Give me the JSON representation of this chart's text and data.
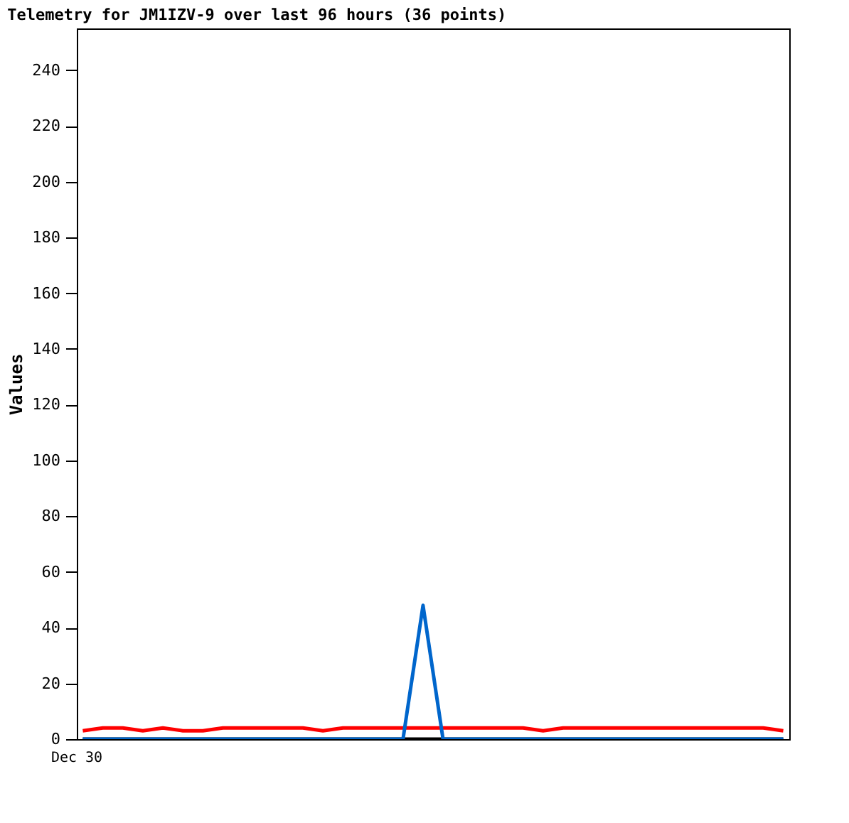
{
  "chart_data": {
    "type": "line",
    "title": "Telemetry for JM1IZV-9 over last 96 hours (36 points)",
    "ylabel": "Values",
    "categories": [
      null,
      null,
      null,
      null,
      null,
      null,
      null,
      null,
      null,
      null,
      null,
      null,
      null,
      null,
      null,
      null,
      null,
      null,
      null,
      null,
      null,
      null,
      null,
      null,
      null,
      null,
      null,
      null,
      null,
      null,
      null,
      null,
      null,
      null,
      null,
      null
    ],
    "series": [
      {
        "color": "#000000",
        "values": [
          0,
          0,
          0,
          0,
          0,
          0,
          0,
          0,
          0,
          0,
          0,
          0,
          0,
          0,
          0,
          0,
          0,
          0,
          0,
          0,
          0,
          0,
          0,
          0,
          0,
          0,
          0,
          0,
          0,
          0,
          0,
          0,
          0,
          0,
          0,
          0
        ]
      },
      {
        "color": "#ff0000",
        "values": [
          3,
          4,
          4,
          3,
          4,
          3,
          3,
          4,
          4,
          4,
          4,
          4,
          3,
          4,
          4,
          4,
          4,
          4,
          4,
          4,
          4,
          4,
          4,
          3,
          4,
          4,
          4,
          4,
          4,
          4,
          4,
          4,
          4,
          4,
          4,
          3
        ]
      },
      {
        "color": "#0066cc",
        "values": [
          0,
          0,
          0,
          0,
          0,
          0,
          0,
          0,
          0,
          0,
          0,
          0,
          0,
          0,
          0,
          0,
          0,
          48,
          0,
          0,
          0,
          0,
          0,
          0,
          0,
          0,
          0,
          0,
          0,
          0,
          0,
          0,
          0,
          0,
          0,
          0
        ]
      }
    ],
    "annotations": [
      "Dec 30"
    ],
    "ylim": [
      0,
      255
    ],
    "yticks": [
      0,
      20,
      40,
      60,
      80,
      100,
      120,
      140,
      160,
      180,
      200,
      220,
      240
    ],
    "grid": false,
    "legend": false
  }
}
